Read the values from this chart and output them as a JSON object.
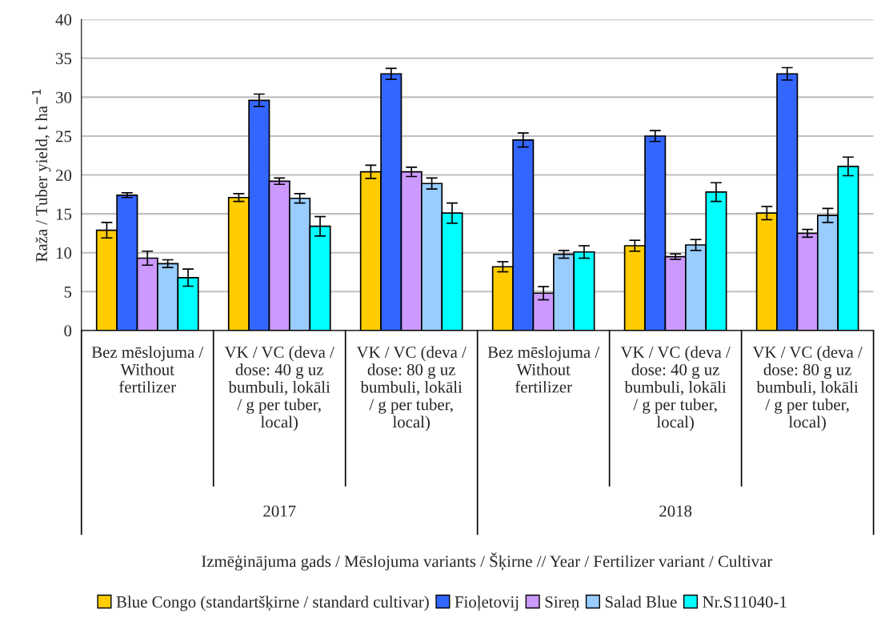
{
  "chart_data": {
    "type": "bar",
    "ylabel": "Raža / Tuber yield, t ha$^{−1}$",
    "categories": [
      "Bez mēslojuma / Without fertilizer",
      "VK / VC (deva / dose: 40 g uz bumbuli, lokāli / g per tuber, local)",
      "VK / VC (deva / dose: 80 g uz bumbuli, lokāli / g per tuber, local)",
      "Bez mēslojuma / Without fertilizer",
      "VK / VC (deva / dose: 40 g uz bumbuli, lokāli / g per tuber, local)",
      "VK / VC (deva / dose: 80 g uz bumbuli, lokāli / g per tuber, local)"
    ],
    "annotations": [
      "2017",
      "2018",
      "Izmēģinājuma gads / Mēslojuma variants / Šķirne // Year / Fertilizer variant / Cultivar"
    ],
    "series": [
      {
        "name": "Blue Congo (standartšķirne / standard cultivar)",
        "color": "#ffcc00",
        "values": [
          12.9,
          17.1,
          20.4,
          8.2,
          10.9,
          15.1
        ],
        "errors": [
          1.0,
          0.5,
          0.85,
          0.65,
          0.7,
          0.85
        ]
      },
      {
        "name": "Fioļetovij",
        "color": "#3366ff",
        "values": [
          17.4,
          29.6,
          33.0,
          24.5,
          25.0,
          33.0
        ],
        "errors": [
          0.3,
          0.8,
          0.7,
          0.9,
          0.7,
          0.8
        ]
      },
      {
        "name": "Sireņ",
        "color": "#cc99ff",
        "values": [
          9.3,
          19.2,
          20.4,
          4.8,
          9.5,
          12.5
        ],
        "errors": [
          0.9,
          0.4,
          0.6,
          0.85,
          0.35,
          0.5
        ]
      },
      {
        "name": "Salad Blue",
        "color": "#99ccff",
        "values": [
          8.6,
          17.0,
          18.9,
          9.8,
          11.0,
          14.8
        ],
        "errors": [
          0.5,
          0.6,
          0.7,
          0.5,
          0.7,
          0.9
        ]
      },
      {
        "name": "Nr.S11040-1",
        "color": "#00ffff",
        "values": [
          6.8,
          13.4,
          15.1,
          10.1,
          17.8,
          21.1
        ],
        "errors": [
          1.1,
          1.25,
          1.3,
          0.8,
          1.2,
          1.2
        ]
      }
    ],
    "ylim": [
      0,
      40
    ],
    "yticks": [
      0,
      5,
      10,
      15,
      20,
      25,
      30,
      35,
      40
    ],
    "grid": "y",
    "legend": "bottom"
  }
}
